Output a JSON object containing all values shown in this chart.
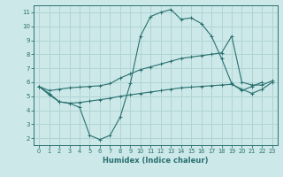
{
  "xlabel": "Humidex (Indice chaleur)",
  "bg_color": "#cce8e8",
  "grid_color": "#b0d4d4",
  "line_color": "#2a7070",
  "xlim": [
    -0.5,
    23.5
  ],
  "ylim": [
    1.5,
    11.5
  ],
  "xticks": [
    0,
    1,
    2,
    3,
    4,
    5,
    6,
    7,
    8,
    9,
    10,
    11,
    12,
    13,
    14,
    15,
    16,
    17,
    18,
    19,
    20,
    21,
    22,
    23
  ],
  "yticks": [
    2,
    3,
    4,
    5,
    6,
    7,
    8,
    9,
    10,
    11
  ],
  "line1_x": [
    0,
    1,
    2,
    3,
    4,
    5,
    6,
    7,
    8,
    9,
    10,
    11,
    12,
    13,
    14,
    15,
    16,
    17,
    18,
    19,
    20,
    21,
    22
  ],
  "line1_y": [
    5.7,
    5.1,
    4.6,
    4.5,
    4.2,
    2.2,
    1.9,
    2.2,
    3.5,
    5.9,
    9.3,
    10.7,
    11.0,
    11.2,
    10.5,
    10.6,
    10.2,
    9.3,
    7.7,
    5.9,
    5.4,
    5.7,
    6.0
  ],
  "line2_x": [
    0,
    1,
    2,
    3,
    4,
    5,
    6,
    7,
    8,
    9,
    10,
    11,
    12,
    13,
    14,
    15,
    16,
    17,
    18,
    19,
    20,
    21,
    22,
    23
  ],
  "line2_y": [
    5.7,
    5.4,
    5.5,
    5.6,
    5.65,
    5.7,
    5.75,
    5.9,
    6.3,
    6.6,
    6.9,
    7.1,
    7.3,
    7.5,
    7.7,
    7.8,
    7.9,
    8.0,
    8.1,
    9.3,
    6.0,
    5.8,
    5.8,
    6.1
  ],
  "line3_x": [
    0,
    1,
    2,
    3,
    4,
    5,
    6,
    7,
    8,
    9,
    10,
    11,
    12,
    13,
    14,
    15,
    16,
    17,
    18,
    19,
    20,
    21,
    22,
    23
  ],
  "line3_y": [
    5.7,
    5.2,
    4.6,
    4.5,
    4.55,
    4.65,
    4.75,
    4.85,
    5.0,
    5.1,
    5.2,
    5.3,
    5.4,
    5.5,
    5.6,
    5.65,
    5.7,
    5.75,
    5.8,
    5.85,
    5.5,
    5.2,
    5.5,
    6.0
  ]
}
